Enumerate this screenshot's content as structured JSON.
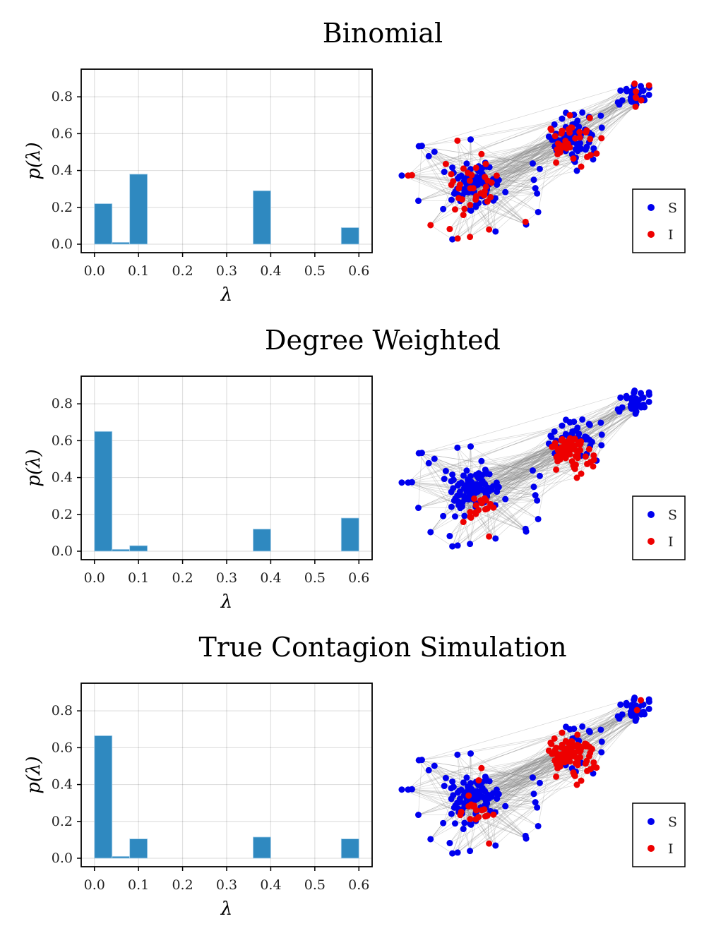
{
  "colors": {
    "bar": "#2f89c0",
    "susceptible": "#0000ee",
    "infected": "#ee0000",
    "edge": "#888888"
  },
  "chart_data": [
    {
      "type": "bar",
      "title": "Binomial",
      "xlabel": "λ",
      "ylabel": "p(λ)",
      "bin_width": 0.04,
      "bin_starts": [
        0.0,
        0.04,
        0.08,
        0.36,
        0.56
      ],
      "values": [
        0.22,
        0.01,
        0.38,
        0.29,
        0.09
      ],
      "xticks": [
        "0.0",
        "0.1",
        "0.2",
        "0.3",
        "0.4",
        "0.5",
        "0.6"
      ],
      "yticks": [
        "0.0",
        "0.2",
        "0.4",
        "0.6",
        "0.8"
      ],
      "xlim": [
        -0.03,
        0.63
      ],
      "ylim": [
        -0.046,
        0.95
      ],
      "grid": true,
      "network": {
        "legend": [
          "S",
          "I"
        ],
        "legend_position": "bottom-right",
        "infected_pattern": "scattered"
      }
    },
    {
      "type": "bar",
      "title": "Degree Weighted",
      "xlabel": "λ",
      "ylabel": "p(λ)",
      "bin_width": 0.04,
      "bin_starts": [
        0.0,
        0.04,
        0.08,
        0.36,
        0.56
      ],
      "values": [
        0.65,
        0.01,
        0.03,
        0.12,
        0.18
      ],
      "xticks": [
        "0.0",
        "0.1",
        "0.2",
        "0.3",
        "0.4",
        "0.5",
        "0.6"
      ],
      "yticks": [
        "0.0",
        "0.2",
        "0.4",
        "0.6",
        "0.8"
      ],
      "xlim": [
        -0.03,
        0.63
      ],
      "ylim": [
        -0.046,
        0.95
      ],
      "grid": true,
      "network": {
        "legend": [
          "S",
          "I"
        ],
        "legend_position": "bottom-right",
        "infected_pattern": "cluster cores"
      }
    },
    {
      "type": "bar",
      "title": "True Contagion Simulation",
      "xlabel": "λ",
      "ylabel": "p(λ)",
      "bin_width": 0.04,
      "bin_starts": [
        0.0,
        0.04,
        0.08,
        0.36,
        0.56
      ],
      "values": [
        0.665,
        0.01,
        0.105,
        0.115,
        0.105
      ],
      "xticks": [
        "0.0",
        "0.1",
        "0.2",
        "0.3",
        "0.4",
        "0.5",
        "0.6"
      ],
      "yticks": [
        "0.0",
        "0.2",
        "0.4",
        "0.6",
        "0.8"
      ],
      "xlim": [
        -0.03,
        0.63
      ],
      "ylim": [
        -0.046,
        0.95
      ],
      "grid": true,
      "network": {
        "legend": [
          "S",
          "I"
        ],
        "legend_position": "bottom-right",
        "infected_pattern": "right cluster core"
      }
    }
  ]
}
